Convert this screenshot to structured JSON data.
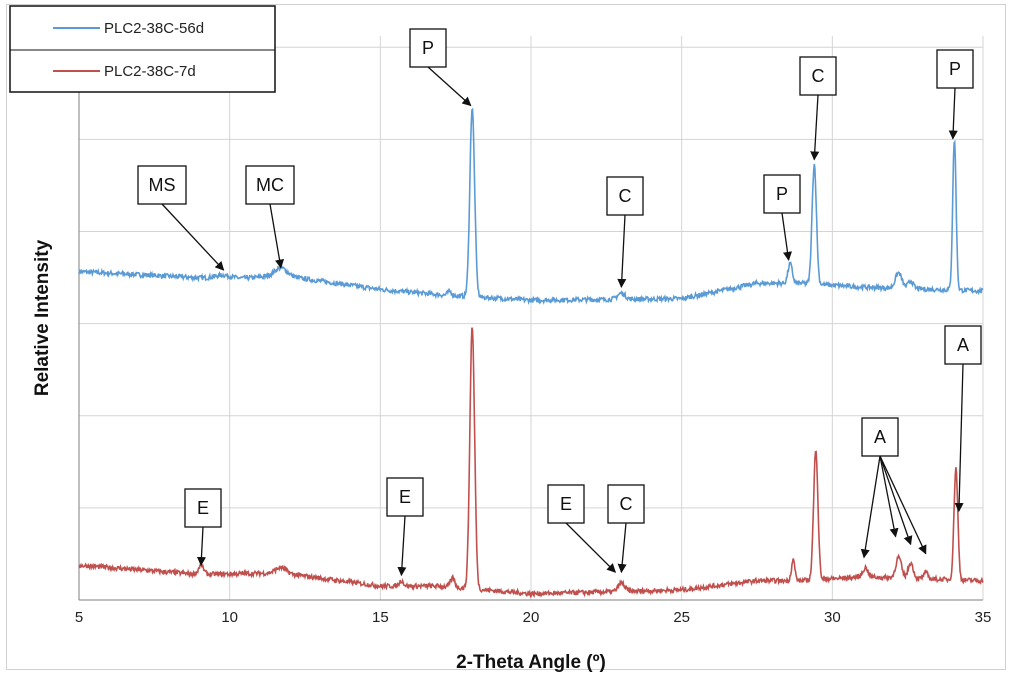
{
  "chart_data": {
    "type": "line",
    "xlabel": "2-Theta Angle (º)",
    "ylabel": "Relative Intensity",
    "xlim": [
      5,
      35
    ],
    "xticks": [
      5,
      10,
      15,
      20,
      25,
      30,
      35
    ],
    "ylim": [
      0,
      7.3
    ],
    "ygrid_count": 6,
    "grid": true,
    "legend_placement": "top-left",
    "series": [
      {
        "name": "PLC2-38C-56d",
        "color": "#5b9bd5",
        "baseline": 4.0,
        "background": [
          [
            5,
            4.25
          ],
          [
            10,
            4.15
          ],
          [
            11.7,
            4.2
          ],
          [
            15,
            4.02
          ],
          [
            17,
            3.95
          ],
          [
            20,
            3.88
          ],
          [
            25,
            3.9
          ],
          [
            27.5,
            4.1
          ],
          [
            29,
            4.1
          ],
          [
            31,
            4.05
          ],
          [
            35,
            4.0
          ]
        ],
        "peaks": [
          {
            "x": 9.8,
            "height": 0.05,
            "width": 0.4
          },
          {
            "x": 11.7,
            "height": 0.1,
            "width": 0.3
          },
          {
            "x": 17.3,
            "height": 0.05,
            "width": 0.1
          },
          {
            "x": 18.05,
            "height": 2.45,
            "width": 0.11
          },
          {
            "x": 23.0,
            "height": 0.08,
            "width": 0.18
          },
          {
            "x": 28.6,
            "height": 0.25,
            "width": 0.1
          },
          {
            "x": 29.4,
            "height": 1.55,
            "width": 0.1
          },
          {
            "x": 32.2,
            "height": 0.2,
            "width": 0.15
          },
          {
            "x": 32.6,
            "height": 0.1,
            "width": 0.12
          },
          {
            "x": 34.05,
            "height": 1.95,
            "width": 0.08
          }
        ]
      },
      {
        "name": "PLC2-38C-7d",
        "color": "#c0504d",
        "baseline": 0.35,
        "background": [
          [
            5,
            0.45
          ],
          [
            9,
            0.33
          ],
          [
            11.7,
            0.35
          ],
          [
            15,
            0.18
          ],
          [
            17,
            0.18
          ],
          [
            20,
            0.08
          ],
          [
            25,
            0.13
          ],
          [
            27.5,
            0.25
          ],
          [
            29,
            0.25
          ],
          [
            31,
            0.3
          ],
          [
            35,
            0.25
          ]
        ],
        "peaks": [
          {
            "x": 9.05,
            "height": 0.12,
            "width": 0.12
          },
          {
            "x": 11.7,
            "height": 0.07,
            "width": 0.25
          },
          {
            "x": 15.7,
            "height": 0.07,
            "width": 0.1
          },
          {
            "x": 17.4,
            "height": 0.12,
            "width": 0.1
          },
          {
            "x": 18.05,
            "height": 3.4,
            "width": 0.11
          },
          {
            "x": 23.0,
            "height": 0.11,
            "width": 0.15
          },
          {
            "x": 28.7,
            "height": 0.27,
            "width": 0.08
          },
          {
            "x": 29.45,
            "height": 1.7,
            "width": 0.1
          },
          {
            "x": 31.1,
            "height": 0.12,
            "width": 0.12
          },
          {
            "x": 32.2,
            "height": 0.27,
            "width": 0.13
          },
          {
            "x": 32.6,
            "height": 0.2,
            "width": 0.12
          },
          {
            "x": 33.1,
            "height": 0.08,
            "width": 0.1
          },
          {
            "x": 34.1,
            "height": 1.45,
            "width": 0.09
          }
        ]
      }
    ],
    "annotations": [
      {
        "label": "MS",
        "tip": [
          9.8,
          4.27
        ]
      },
      {
        "label": "MC",
        "tip": [
          11.7,
          4.3
        ]
      },
      {
        "label": "P",
        "tip": [
          18.0,
          6.4
        ]
      },
      {
        "label": "C",
        "tip": [
          23.0,
          4.05
        ]
      },
      {
        "label": "P",
        "tip": [
          28.55,
          4.4
        ]
      },
      {
        "label": "C",
        "tip": [
          29.4,
          5.7
        ]
      },
      {
        "label": "P",
        "tip": [
          34.0,
          5.97
        ]
      },
      {
        "label": "E",
        "tip": [
          9.05,
          0.45
        ]
      },
      {
        "label": "E",
        "tip": [
          15.7,
          0.32
        ]
      },
      {
        "label": "E",
        "tip": [
          22.8,
          0.36
        ]
      },
      {
        "label": "C",
        "tip": [
          23.0,
          0.36
        ]
      },
      {
        "label": "A",
        "tip": [
          34.2,
          1.15
        ]
      },
      {
        "label": "A",
        "tips": [
          [
            31.05,
            0.55
          ],
          [
            32.1,
            0.82
          ],
          [
            32.6,
            0.72
          ],
          [
            33.1,
            0.6
          ]
        ]
      }
    ]
  }
}
